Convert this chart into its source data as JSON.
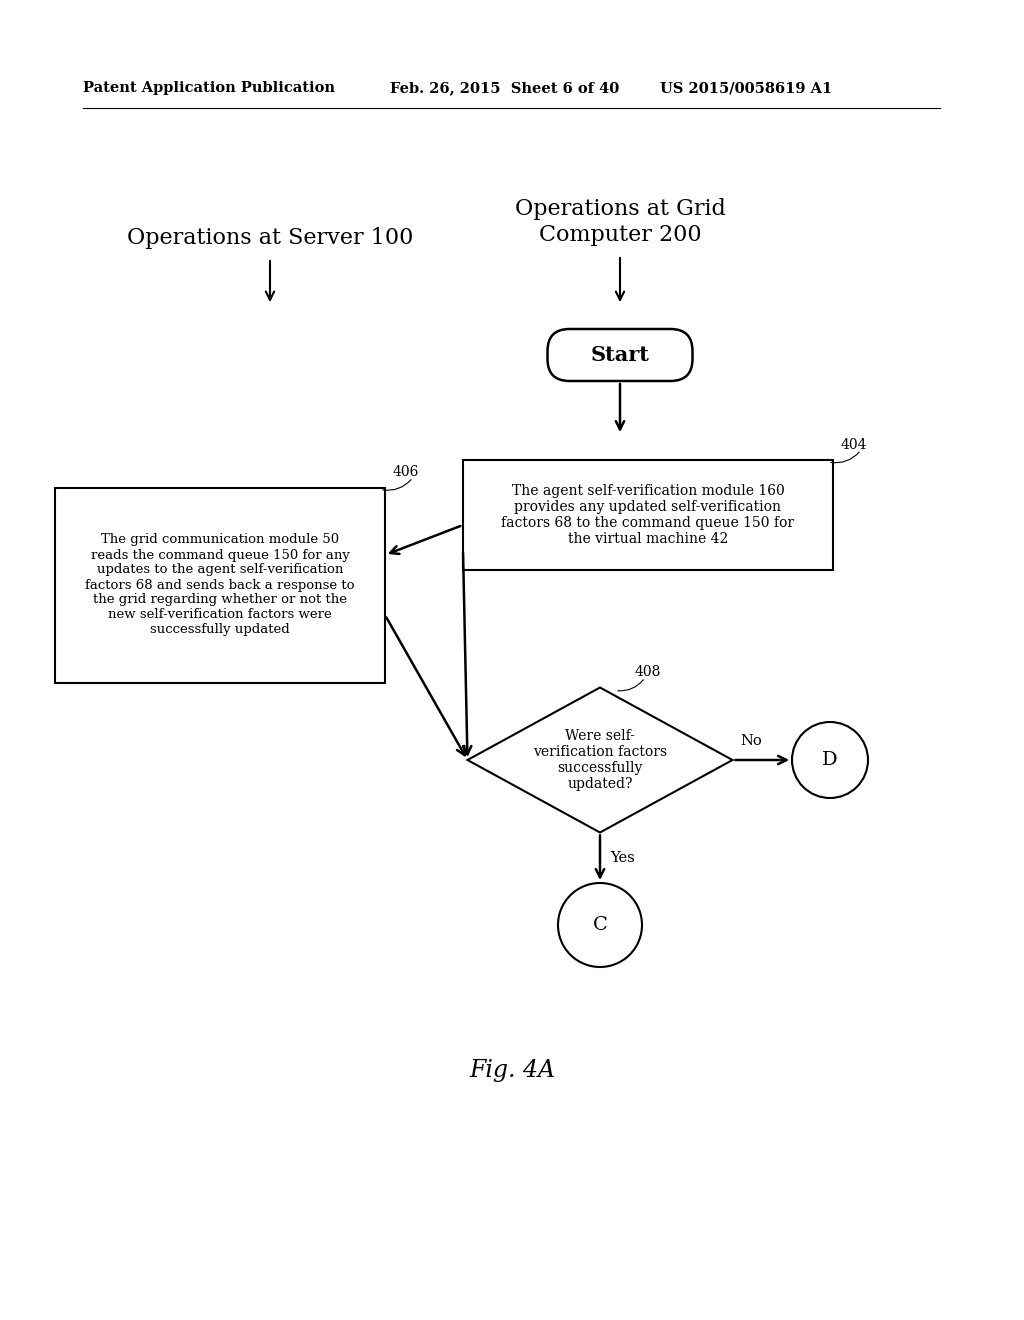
{
  "bg_color": "#ffffff",
  "header_text1": "Patent Application Publication",
  "header_text2": "Feb. 26, 2015  Sheet 6 of 40",
  "header_text3": "US 2015/0058619 A1",
  "title_server": "Operations at Server 100",
  "title_grid": "Operations at Grid\nComputer 200",
  "start_label": "Start",
  "box404_label": "The agent self-verification module 160\nprovides any updated self-verification\nfactors 68 to the command queue 150 for\nthe virtual machine 42",
  "box406_label": "The grid communication module 50\nreads the command queue 150 for any\nupdates to the agent self-verification\nfactors 68 and sends back a response to\nthe grid regarding whether or not the\nnew self-verification factors were\nsuccessfully updated",
  "diamond408_label": "Were self-\nverification factors\nsuccessfully\nupdated?",
  "label404": "404",
  "label406": "406",
  "label408": "408",
  "circle_c": "C",
  "circle_d": "D",
  "yes_label": "Yes",
  "no_label": "No",
  "fig_label": "Fig. 4A"
}
